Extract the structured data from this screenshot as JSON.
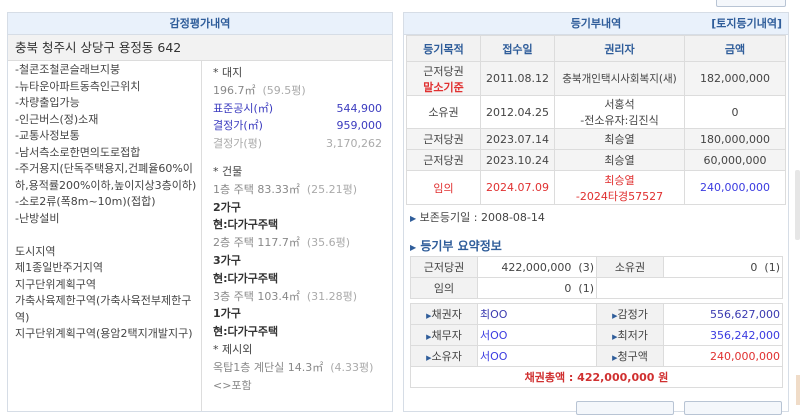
{
  "left": {
    "title": "감정평가내역",
    "address": "충북 청주시 상당구 용정동 642",
    "notes": [
      "-철콘조철콘슬래브지붕",
      "-뉴타운아파트동측인근위치",
      "-차량출입가능",
      "-인근버스(정)소재",
      "-교통사정보통",
      "-남서측소로한면의도로접합",
      "-주거용지(단독주택용지,건폐율60%이하,용적률200%이하,높이지상3층이하)",
      "-소로2류(폭8m~10m)(접합)",
      "-난방설비",
      "",
      "도시지역",
      "제1종일반주거지역",
      "지구단위계획구역",
      "가축사육제한구역(가축사육전부제한구역)",
      "지구단위계획구역(용암2택지개발지구)"
    ],
    "land": {
      "header": "* 대지",
      "area": "196.7㎡",
      "area_pyeong": "(59.5평)",
      "std_label": "표준공시(㎡)",
      "std_value": "544,900",
      "dec_label": "결정가(㎡)",
      "dec_value": "959,000",
      "decp_label": "결정가(평)",
      "decp_value": "3,170,262"
    },
    "building": {
      "header": "* 건물",
      "floors": [
        {
          "line": "1층 주택 83.33㎡",
          "pyeong": "(25.21평)",
          "units": "2가구",
          "current": "현:다가구주택"
        },
        {
          "line": "2층 주택 117.7㎡",
          "pyeong": "(35.6평)",
          "units": "3가구",
          "current": "현:다가구주택"
        },
        {
          "line": "3층 주택 103.4㎡",
          "pyeong": "(31.28평)",
          "units": "1가구",
          "current": "현:다가구주택"
        }
      ]
    },
    "extra": {
      "header": "* 제시외",
      "line": "옥탑1층 계단실 14.3㎡",
      "pyeong": "(4.33평)",
      "note": "<>포함"
    }
  },
  "right": {
    "title": "등기부내역",
    "land_link": "[토지등기내역]",
    "columns": [
      "등기목적",
      "접수일",
      "권리자",
      "금액"
    ],
    "rows": [
      {
        "purpose": "근저당권",
        "sub": "말소기준",
        "date": "2011.08.12",
        "holder": "충북개인택시사회복지(새)",
        "holder2": "",
        "amount": "182,000,000"
      },
      {
        "purpose": "소유권",
        "sub": "",
        "date": "2012.04.25",
        "holder": "서홍석",
        "holder2": "-전소유자:김진식",
        "amount": "0"
      },
      {
        "purpose": "근저당권",
        "sub": "",
        "date": "2023.07.14",
        "holder": "최승열",
        "holder2": "",
        "amount": "180,000,000"
      },
      {
        "purpose": "근저당권",
        "sub": "",
        "date": "2023.10.24",
        "holder": "최승열",
        "holder2": "",
        "amount": "60,000,000"
      },
      {
        "purpose": "임의",
        "sub": "",
        "date": "2024.07.09",
        "holder": "최승열",
        "holder2": "-2024타경57527",
        "amount": "240,000,000"
      }
    ],
    "preserve": "보존등기일 : 2008-08-14",
    "summary_title": "등기부 요약정보",
    "summary": [
      {
        "label": "근저당권",
        "value": "422,000,000",
        "count": "(3)",
        "label2": "소유권",
        "value2": "0",
        "count2": "(1)"
      },
      {
        "label": "임의",
        "value": "0",
        "count": "(1)"
      }
    ],
    "parties": [
      {
        "label": "채권자",
        "value": "최OO",
        "label2": "감정가",
        "value2": "556,627,000"
      },
      {
        "label": "채무자",
        "value": "서OO",
        "label2": "최저가",
        "value2": "356,242,000"
      },
      {
        "label": "소유자",
        "value": "서OO",
        "label2": "청구액",
        "value2": "240,000,000"
      }
    ],
    "total": "채권총액 : 422,000,000 원"
  },
  "colors": {
    "header_bg": "#e9f1fb",
    "title_blue": "#2f5d9a",
    "red": "#e03030",
    "value_blue": "#3a3ae0"
  }
}
